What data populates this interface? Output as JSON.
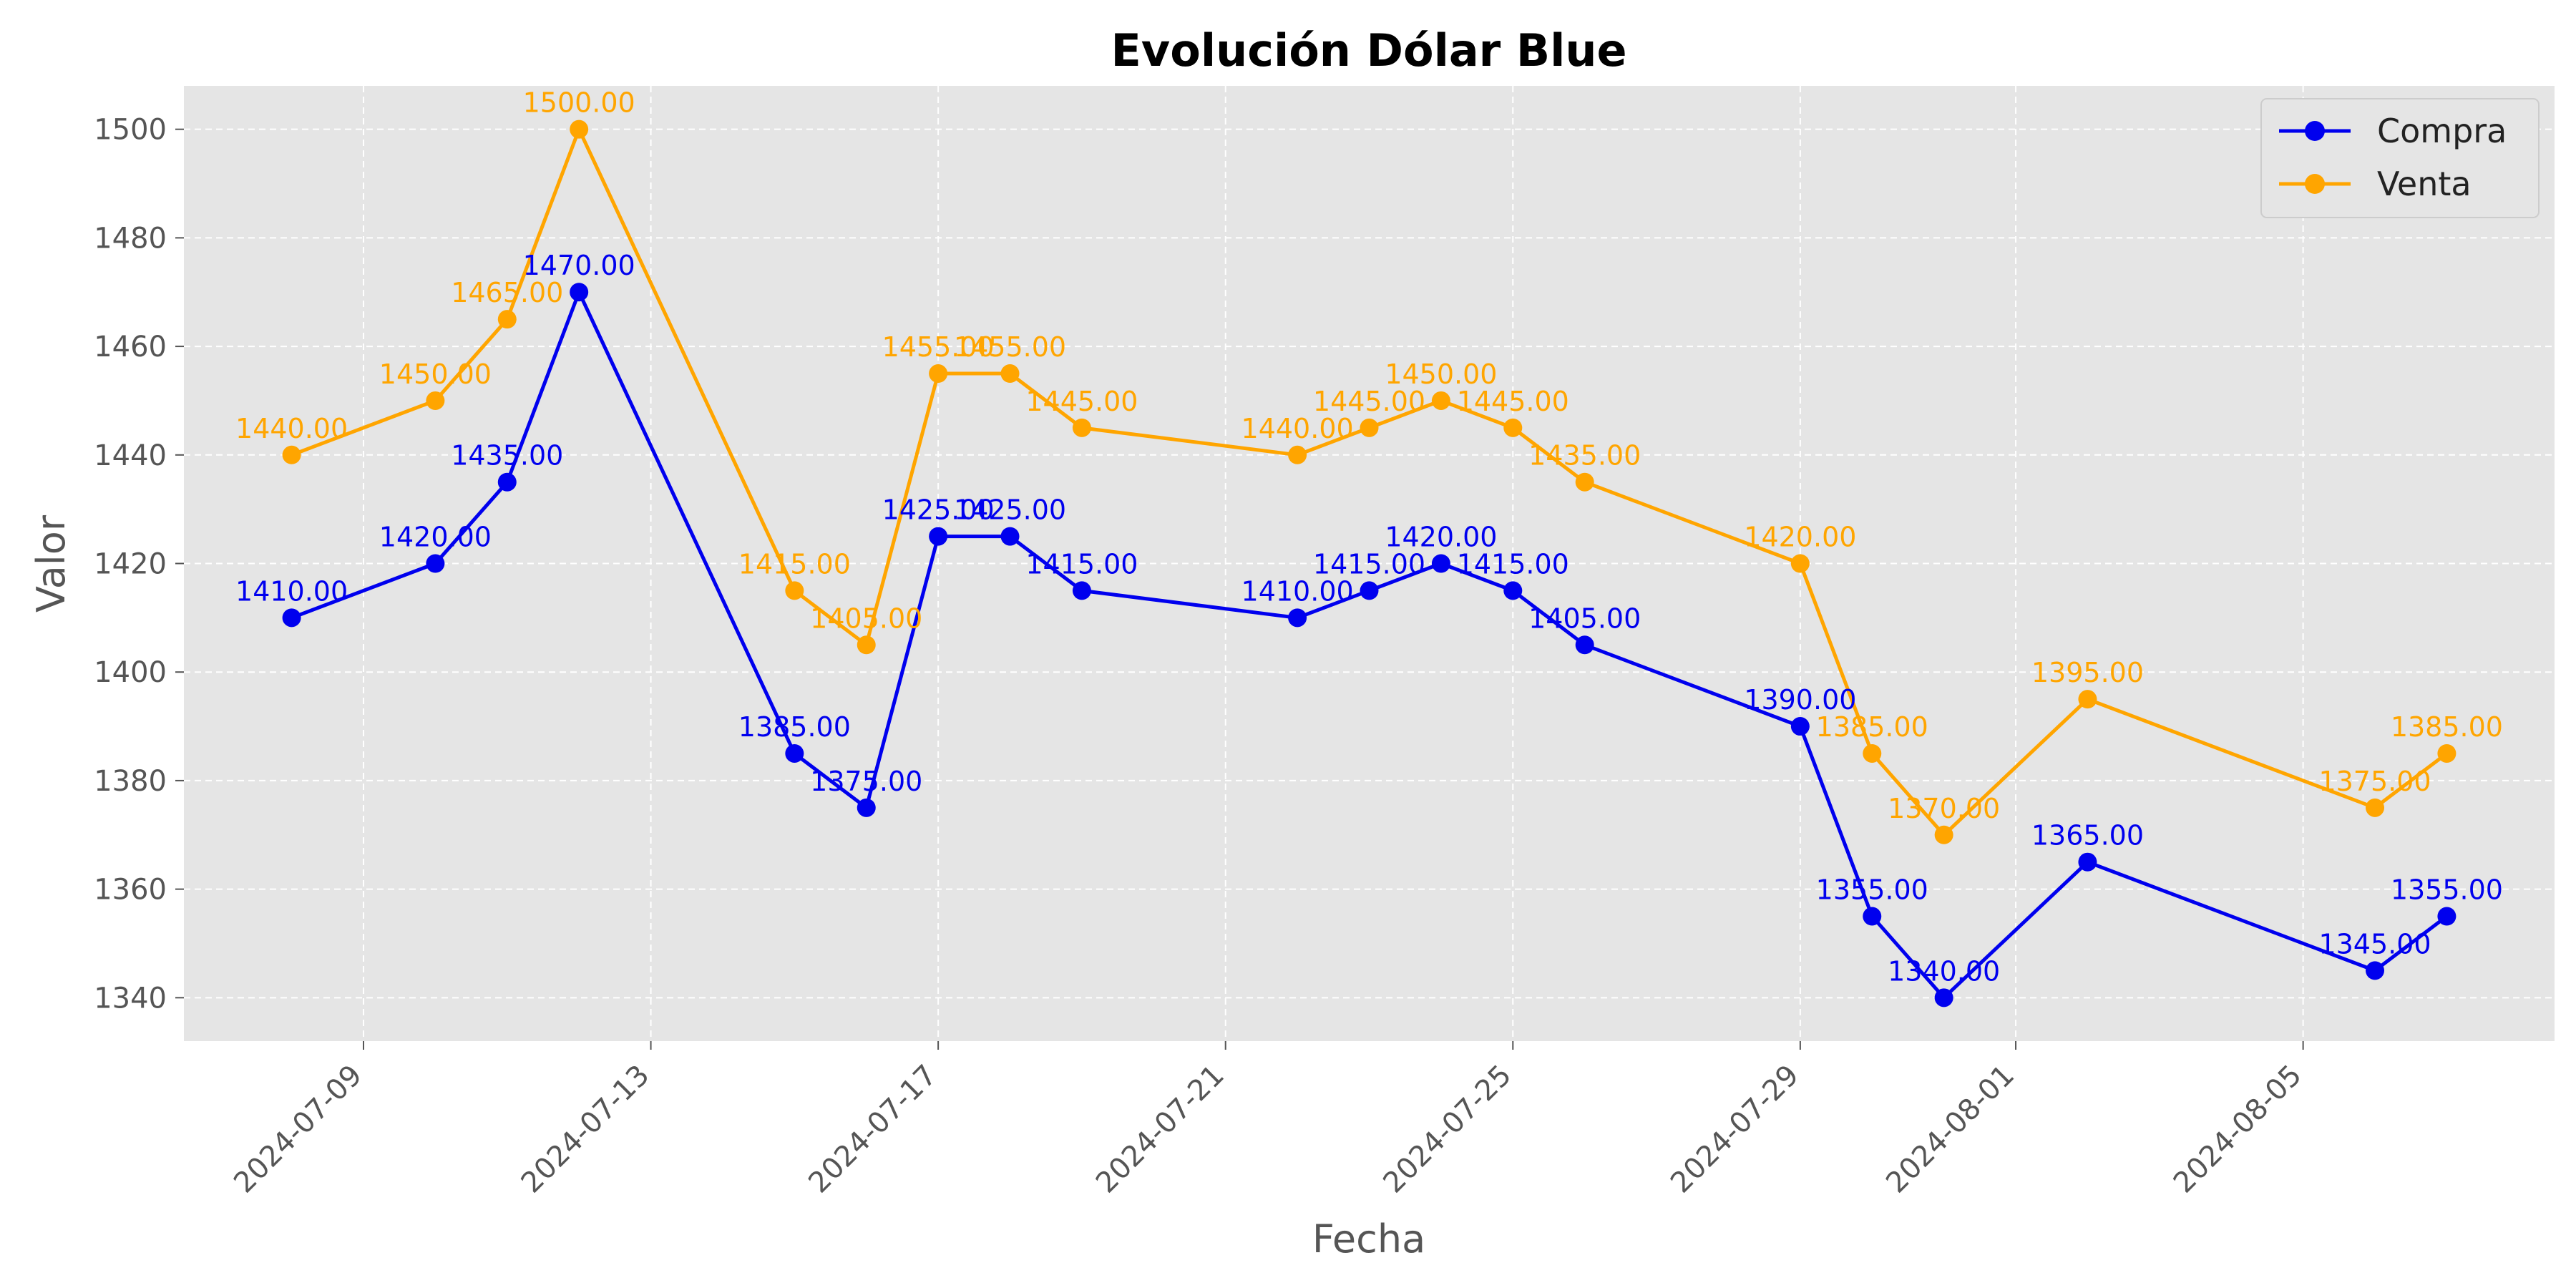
{
  "chart_data": {
    "type": "line",
    "title": "Evolución Dólar Blue",
    "xlabel": "Fecha",
    "ylabel": "Valor",
    "ylim": [
      1332,
      1508
    ],
    "xlim": [
      "2024-07-06T12:00",
      "2024-08-08T12:00"
    ],
    "yticks": [
      1340,
      1360,
      1380,
      1400,
      1420,
      1440,
      1460,
      1480,
      1500
    ],
    "xticks": [
      "2024-07-09",
      "2024-07-13",
      "2024-07-17",
      "2024-07-21",
      "2024-07-25",
      "2024-07-29",
      "2024-08-01",
      "2024-08-05"
    ],
    "grid": true,
    "legend_position": "top-right",
    "x": [
      "2024-07-08",
      "2024-07-10",
      "2024-07-11",
      "2024-07-12",
      "2024-07-15",
      "2024-07-16",
      "2024-07-17",
      "2024-07-18",
      "2024-07-19",
      "2024-07-22",
      "2024-07-23",
      "2024-07-24",
      "2024-07-25",
      "2024-07-26",
      "2024-07-29",
      "2024-07-30",
      "2024-07-31",
      "2024-08-02",
      "2024-08-06",
      "2024-08-07"
    ],
    "series": [
      {
        "name": "Compra",
        "color": "#0000ee",
        "values": [
          1410,
          1420,
          1435,
          1470,
          1385,
          1375,
          1425,
          1425,
          1415,
          1410,
          1415,
          1420,
          1415,
          1405,
          1390,
          1355,
          1340,
          1365,
          1345,
          1355
        ],
        "labels": [
          "1410.00",
          "1420.00",
          "1435.00",
          "1470.00",
          "1385.00",
          "1375.00",
          "1425.00",
          "1425.00",
          "1415.00",
          "1410.00",
          "1415.00",
          "1420.00",
          "1415.00",
          "1405.00",
          "1390.00",
          "1355.00",
          "1340.00",
          "1365.00",
          "1345.00",
          "1355.00"
        ]
      },
      {
        "name": "Venta",
        "color": "#ffa500",
        "values": [
          1440,
          1450,
          1465,
          1500,
          1415,
          1405,
          1455,
          1455,
          1445,
          1440,
          1445,
          1450,
          1445,
          1435,
          1420,
          1385,
          1370,
          1395,
          1375,
          1385
        ],
        "labels": [
          "1440.00",
          "1450.00",
          "1465.00",
          "1500.00",
          "1415.00",
          "1405.00",
          "1455.00",
          "1455.00",
          "1445.00",
          "1440.00",
          "1445.00",
          "1450.00",
          "1445.00",
          "1435.00",
          "1420.00",
          "1385.00",
          "1370.00",
          "1395.00",
          "1375.00",
          "1385.00"
        ]
      }
    ],
    "colors": {
      "plot_background": "#e5e5e5",
      "grid": "#ffffff"
    }
  }
}
